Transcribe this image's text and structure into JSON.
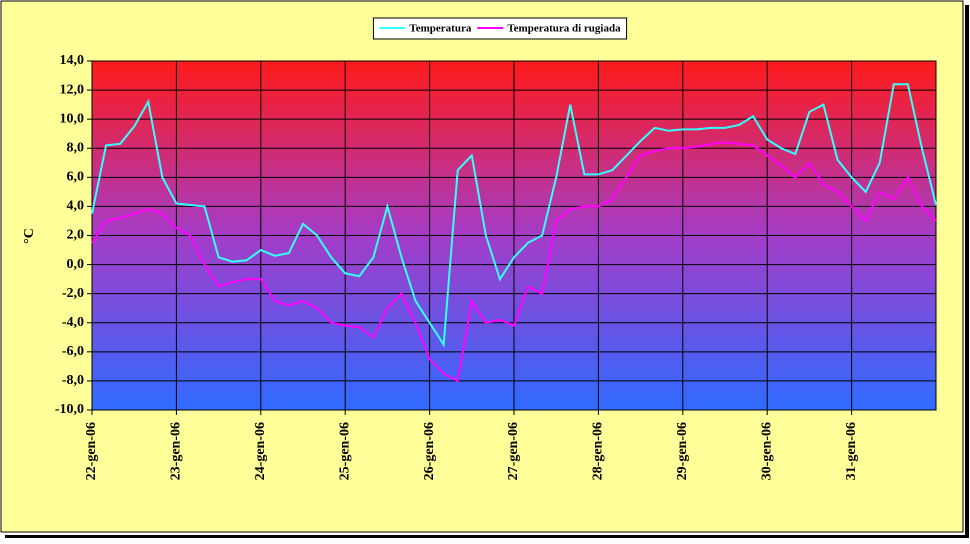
{
  "chart_data": {
    "type": "line",
    "y_label": "°C",
    "categories": [
      "22-gen-06",
      null,
      null,
      null,
      null,
      null,
      "23-gen-06",
      null,
      null,
      null,
      null,
      null,
      "24-gen-06",
      null,
      null,
      null,
      null,
      null,
      "25-gen-06",
      null,
      null,
      null,
      null,
      null,
      "26-gen-06",
      null,
      null,
      null,
      null,
      null,
      "27-gen-06",
      null,
      null,
      null,
      null,
      null,
      "28-gen-06",
      null,
      null,
      null,
      null,
      null,
      "29-gen-06",
      null,
      null,
      null,
      null,
      null,
      "30-gen-06",
      null,
      null,
      null,
      null,
      null,
      "31-gen-06",
      null,
      null,
      null,
      null,
      null,
      null
    ],
    "series": [
      {
        "name": "Temperatura",
        "color": "#33ffff",
        "values": [
          3.5,
          8.2,
          8.3,
          9.5,
          11.2,
          6.0,
          4.2,
          4.1,
          4.0,
          0.5,
          0.2,
          0.3,
          1.0,
          0.6,
          0.8,
          2.8,
          2.0,
          0.5,
          -0.6,
          -0.8,
          0.5,
          4.0,
          0.5,
          -2.5,
          -4.0,
          -5.5,
          6.5,
          7.5,
          2.0,
          -1.0,
          0.5,
          1.5,
          2.0,
          6.0,
          11.0,
          6.2,
          6.2,
          6.5,
          7.5,
          8.5,
          9.4,
          9.2,
          9.3,
          9.3,
          9.4,
          9.4,
          9.6,
          10.2,
          8.6,
          8.0,
          7.6,
          10.5,
          11.0,
          7.2,
          6.0,
          5.0,
          7.0,
          12.4,
          12.4,
          8.0,
          4.1
        ]
      },
      {
        "name": "Temperatura di rugiada",
        "color": "#ff00ff",
        "values": [
          1.5,
          3.0,
          3.2,
          3.5,
          3.8,
          3.5,
          2.5,
          2.0,
          0.0,
          -1.5,
          -1.2,
          -1.0,
          -1.0,
          -2.5,
          -2.8,
          -2.5,
          -3.0,
          -4.0,
          -4.2,
          -4.3,
          -5.0,
          -3.0,
          -2.0,
          -4.0,
          -6.5,
          -7.5,
          -8.0,
          -2.5,
          -4.0,
          -3.8,
          -4.2,
          -1.5,
          -2.0,
          3.0,
          3.8,
          4.0,
          4.0,
          4.5,
          6.0,
          7.5,
          7.8,
          8.0,
          8.0,
          8.1,
          8.3,
          8.4,
          8.3,
          8.2,
          7.5,
          6.8,
          6.0,
          7.0,
          5.5,
          5.0,
          4.0,
          3.0,
          5.0,
          4.5,
          6.0,
          4.0,
          3.0
        ]
      }
    ],
    "ylim": [
      -10,
      14
    ],
    "yticks": [
      {
        "value": -10,
        "label": "-10,0"
      },
      {
        "value": -8,
        "label": "-8,0"
      },
      {
        "value": -6,
        "label": "-6,0"
      },
      {
        "value": -4,
        "label": "-4,0"
      },
      {
        "value": -2,
        "label": "-2,0"
      },
      {
        "value": 0,
        "label": "0,0"
      },
      {
        "value": 2,
        "label": "2,0"
      },
      {
        "value": 4,
        "label": "4,0"
      },
      {
        "value": 6,
        "label": "6,0"
      },
      {
        "value": 8,
        "label": "8,0"
      },
      {
        "value": 10,
        "label": "10,0"
      },
      {
        "value": 12,
        "label": "12,0"
      },
      {
        "value": 14,
        "label": "14,0"
      }
    ],
    "grid": true,
    "legend": "top"
  }
}
